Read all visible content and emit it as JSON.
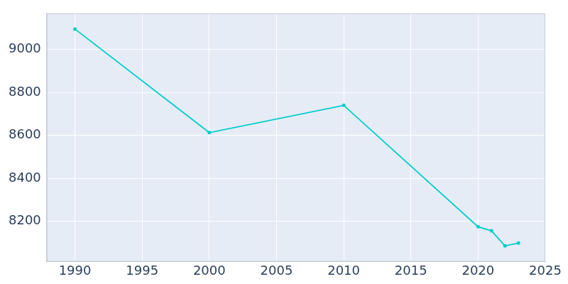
{
  "chart_data": {
    "type": "line",
    "x": [
      1990,
      2000,
      2010,
      2020,
      2021,
      2022,
      2023
    ],
    "values": [
      9095,
      8613,
      8740,
      8175,
      8156,
      8086,
      8099
    ],
    "color": "#00cccc",
    "marker": "circle",
    "xlim": [
      1987.9,
      2025
    ],
    "xticks": [
      1990,
      1995,
      2000,
      2005,
      2010,
      2015,
      2020,
      2025
    ],
    "ylim": [
      8013,
      9168
    ],
    "yticks": [
      8200,
      8400,
      8600,
      8800,
      9000
    ],
    "grid": true
  }
}
